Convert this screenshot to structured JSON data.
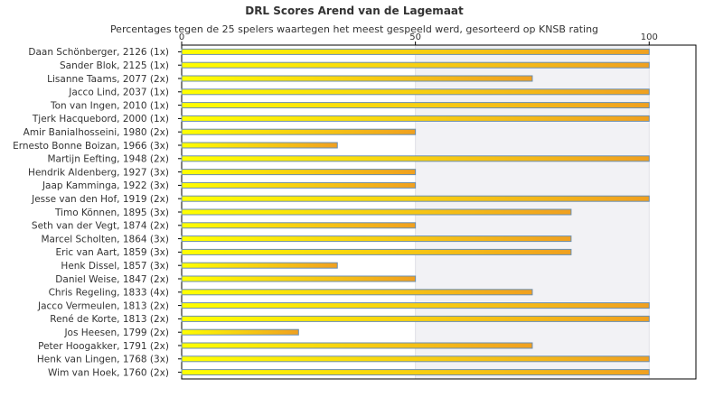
{
  "chart_data": {
    "type": "bar",
    "orientation": "horizontal",
    "title": "DRL Scores Arend van de Lagemaat",
    "subtitle": "Percentages tegen de 25 spelers waartegen het meest gespeeld werd, gesorteerd op KNSB rating",
    "categories": [
      "Daan Schönberger, 2126 (1x)",
      "Sander Blok, 2125 (1x)",
      "Lisanne Taams, 2077 (2x)",
      "Jacco Lind, 2037 (1x)",
      "Ton van Ingen, 2010 (1x)",
      "Tjerk Hacquebord, 2000 (1x)",
      "Amir Banialhosseini, 1980 (2x)",
      "Ernesto Bonne Boizan, 1966 (3x)",
      "Martijn Eefting, 1948 (2x)",
      "Hendrik Aldenberg, 1927 (3x)",
      "Jaap Kamminga, 1922 (3x)",
      "Jesse van den Hof, 1919 (2x)",
      "Timo Können, 1895 (3x)",
      "Seth van der Vegt, 1874 (2x)",
      "Marcel Scholten, 1864 (3x)",
      "Eric van Aart, 1859 (3x)",
      "Henk Dissel, 1857 (3x)",
      "Daniel Weise, 1847 (2x)",
      "Chris Regeling, 1833 (4x)",
      "Jacco Vermeulen, 1813 (2x)",
      "René de Korte, 1813 (2x)",
      "Jos Heesen, 1799 (2x)",
      "Peter Hoogakker, 1791 (2x)",
      "Henk van Lingen, 1768 (3x)",
      "Wim van Hoek, 1760 (2x)"
    ],
    "values": [
      100,
      100,
      75,
      100,
      100,
      100,
      50,
      33.3,
      100,
      50,
      50,
      100,
      83.3,
      50,
      83.3,
      83.3,
      33.3,
      50,
      75,
      100,
      100,
      25,
      75,
      100,
      100
    ],
    "xlim": [
      0,
      110
    ],
    "xticks": [
      "0",
      "50",
      "100"
    ],
    "xtick_values": [
      0,
      50,
      100
    ],
    "grid": true,
    "legend": "none",
    "colors": {
      "bar_light": "#ffff00",
      "bar_dark": "#f0a020",
      "bar_edge": "#6b8fb0",
      "band_light": "#ffffff",
      "band_shade": "#f2f2f5",
      "frame": "#000000"
    }
  }
}
